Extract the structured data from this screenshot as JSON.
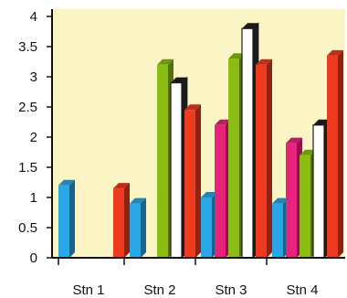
{
  "chart_data": {
    "type": "bar",
    "title": "",
    "xlabel": "",
    "ylabel": "",
    "categories": [
      "Stn 1",
      "Stn 2",
      "Stn 3",
      "Stn 4"
    ],
    "ylim": [
      0,
      4
    ],
    "yticks": [
      "0",
      "0.5",
      "1",
      "1.5",
      "2",
      "2.5",
      "3",
      "3.5",
      "4"
    ],
    "grid": false,
    "legend": "none",
    "three_d": true,
    "plot_background": "#fbf5c6",
    "series": [
      {
        "color": "#2aa7e6",
        "values": [
          1.2,
          0.9,
          1.0,
          0.9
        ]
      },
      {
        "color": "#e8237e",
        "values": [
          0,
          0,
          2.2,
          1.9
        ]
      },
      {
        "color": "#8cbd14",
        "values": [
          0,
          3.2,
          3.3,
          1.7
        ]
      },
      {
        "color": "#ffffff",
        "values": [
          0,
          2.9,
          3.8,
          2.2
        ]
      },
      {
        "color": "#ee3a1f",
        "values": [
          1.15,
          2.45,
          3.2,
          3.35
        ]
      }
    ]
  }
}
